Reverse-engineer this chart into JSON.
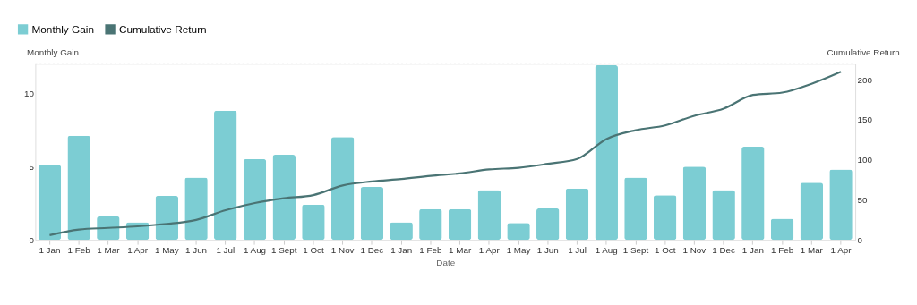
{
  "chart_data": {
    "type": "bar",
    "xlabel": "Date",
    "ylabel": "Monthly Gain",
    "y2label": "Cumulative Return",
    "categories": [
      "1 Jan",
      "1 Feb",
      "1 Mar",
      "1 Apr",
      "1 May",
      "1 Jun",
      "1 Jul",
      "1 Aug",
      "1 Sept",
      "1 Oct",
      "1 Nov",
      "1 Dec",
      "1 Jan",
      "1 Feb",
      "1 Mar",
      "1 Apr",
      "1 May",
      "1 Jun",
      "1 Jul",
      "1 Aug",
      "1 Sept",
      "1 Oct",
      "1 Nov",
      "1 Dec",
      "1 Jan",
      "1 Feb",
      "1 Mar",
      "1 Apr"
    ],
    "series": [
      {
        "name": "Monthly Gain",
        "color": "#7ccdd3",
        "values": [
          5.1,
          7.1,
          1.6,
          1.2,
          3.0,
          4.25,
          8.8,
          5.5,
          5.8,
          2.4,
          7.0,
          3.6,
          1.2,
          2.1,
          2.1,
          3.4,
          1.15,
          2.15,
          3.5,
          11.9,
          4.25,
          3.05,
          5.0,
          3.4,
          6.35,
          1.45,
          3.9,
          4.8
        ]
      },
      {
        "name": "Cumulative Return",
        "type": "line",
        "axis": "y2",
        "color": "#4a7474",
        "values": [
          6,
          13,
          15,
          17,
          20,
          25,
          37,
          46,
          52,
          56,
          68,
          73,
          76,
          80,
          83,
          88,
          90,
          95,
          101,
          126,
          137,
          143,
          155,
          164,
          181,
          184,
          195,
          210
        ]
      }
    ],
    "ylim": [
      0,
      12
    ],
    "yticks": [
      0,
      5,
      10
    ],
    "y2lim": [
      0,
      220
    ],
    "y2ticks": [
      0,
      50,
      100,
      150,
      200
    ],
    "legend": "top left",
    "grid": false
  }
}
